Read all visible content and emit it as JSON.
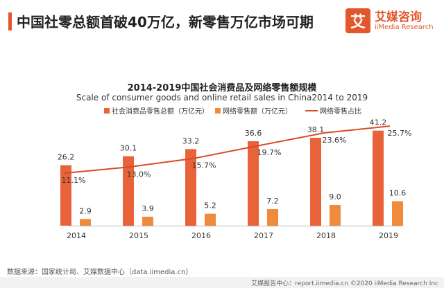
{
  "header": {
    "title": "中国社零总额首破40万亿，新零售万亿市场可期"
  },
  "brand": {
    "logo_glyph": "艾",
    "name_cn": "艾媒咨询",
    "name_en": "iiMedia Research"
  },
  "colors": {
    "accent": "#e2572b",
    "bar_primary": "#e8633a",
    "bar_secondary": "#ef8b3c",
    "line": "#d94a25"
  },
  "chart_data": {
    "type": "bar",
    "title": "2014-2019中国社会消费品及网络零售额规模",
    "subtitle": "Scale of consumer goods and online retail sales in China2014 to 2019",
    "categories": [
      "2014",
      "2015",
      "2016",
      "2017",
      "2018",
      "2019"
    ],
    "series": [
      {
        "name": "社会消费品零售总额（万亿元）",
        "type": "bar",
        "values": [
          26.2,
          30.1,
          33.2,
          36.6,
          38.1,
          41.2
        ]
      },
      {
        "name": "网络零售额（万亿元）",
        "type": "bar",
        "values": [
          2.9,
          3.9,
          5.2,
          7.2,
          9.0,
          10.6
        ]
      },
      {
        "name": "网络零售占比",
        "type": "line",
        "values": [
          11.1,
          13.0,
          15.7,
          19.7,
          23.6,
          25.7
        ],
        "labels": [
          "11.1%",
          "13.0%",
          "15.7%",
          "19.7%",
          "23.6%",
          "25.7%"
        ]
      }
    ],
    "bar_value_labels": {
      "primary": [
        "26.2",
        "30.1",
        "33.2",
        "36.6",
        "38.1",
        "41.2"
      ],
      "secondary": [
        "2.9",
        "3.9",
        "5.2",
        "7.2",
        "9.0",
        "10.6"
      ]
    },
    "ylim": [
      0,
      45
    ],
    "line_ylim": [
      0,
      30
    ],
    "grid": false,
    "legend_position": "top"
  },
  "footer": {
    "source": "数据来源：国家统计局、艾媒数据中心（data.iimedia.cn）",
    "credit": "艾媒报告中心：report.iimedia.cn ©2020 iiMedia Research Inc"
  }
}
